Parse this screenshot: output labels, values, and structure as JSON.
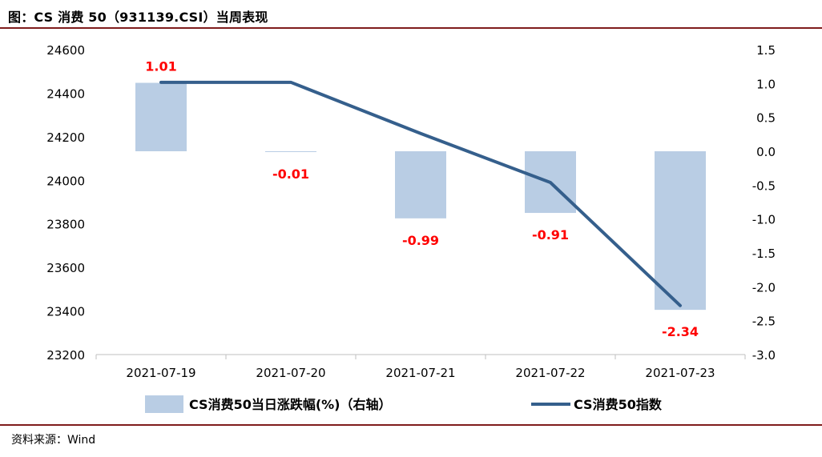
{
  "header": {
    "title": "图：CS 消费 50（931139.CSI）当周表现"
  },
  "footer": {
    "source": "资料来源：Wind"
  },
  "chart_data": {
    "type": "bar+line",
    "categories": [
      "2021-07-19",
      "2021-07-20",
      "2021-07-21",
      "2021-07-22",
      "2021-07-23"
    ],
    "series": [
      {
        "name": "CS消费50当日涨跌幅(%)（右轴）",
        "type": "bar",
        "axis": "right",
        "values": [
          1.01,
          -0.01,
          -0.99,
          -0.91,
          -2.34
        ],
        "labels": [
          "1.01",
          "-0.01",
          "-0.99",
          "-0.91",
          "-2.34"
        ],
        "color": "#b9cde4"
      },
      {
        "name": "CS消费50指数",
        "type": "line",
        "axis": "left",
        "values": [
          24450,
          24450,
          24215,
          23990,
          23425
        ],
        "color": "#355f8c"
      }
    ],
    "y_left": {
      "range": [
        23200,
        24600
      ],
      "ticks": [
        "24600",
        "24400",
        "24200",
        "24000",
        "23800",
        "23600",
        "23400",
        "23200"
      ]
    },
    "y_right": {
      "range": [
        -3.0,
        1.5
      ],
      "ticks": [
        "1.5",
        "1.0",
        "0.5",
        "0.0",
        "-0.5",
        "-1.0",
        "-1.5",
        "-2.0",
        "-2.5",
        "-3.0"
      ]
    },
    "label_color": "#ff0000",
    "legend_position": "bottom"
  }
}
